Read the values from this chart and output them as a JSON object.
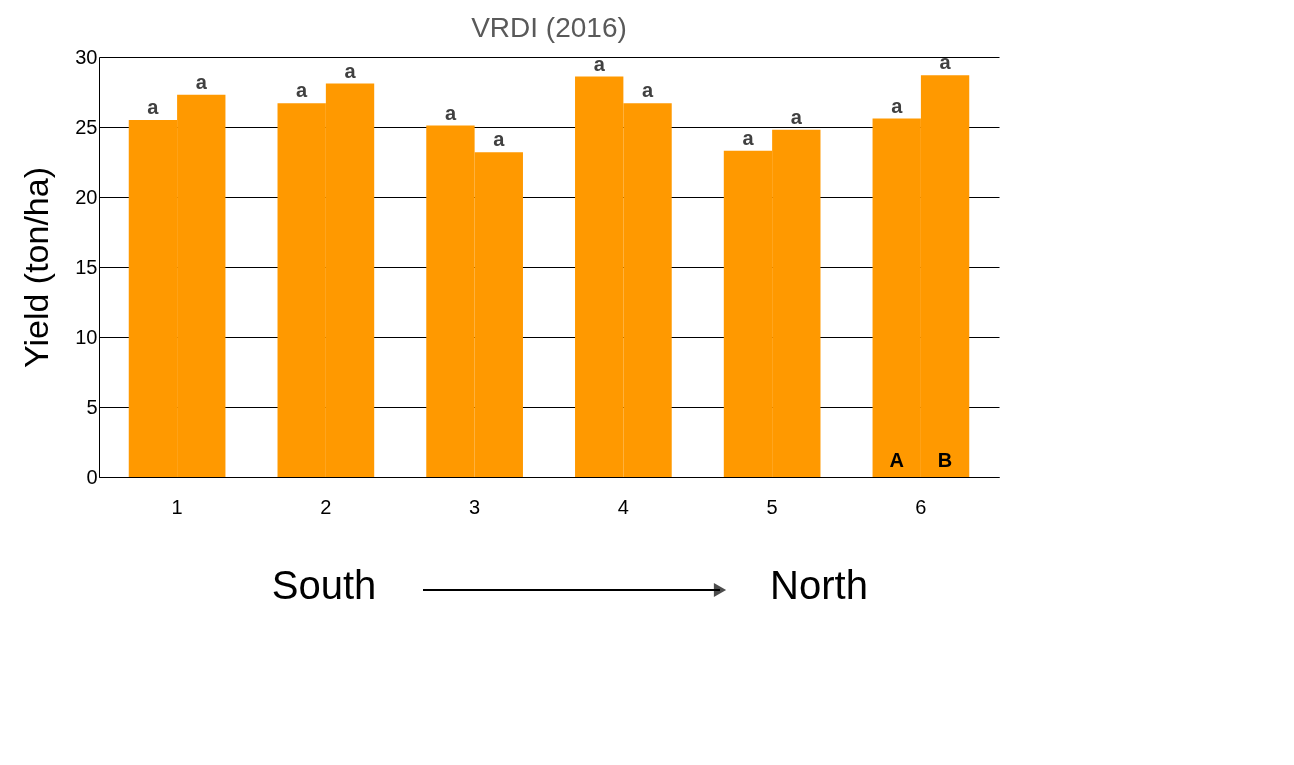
{
  "chart_data": {
    "type": "bar",
    "title": "VRDI (2016)",
    "ylabel": "Yield (ton/ha)",
    "categories": [
      "1",
      "2",
      "3",
      "4",
      "5",
      "6"
    ],
    "series": [
      {
        "name": "A",
        "color": "#ff9900",
        "values": [
          25.5,
          26.7,
          25.1,
          28.6,
          23.3,
          25.6
        ],
        "value_labels": [
          "a",
          "a",
          "a",
          "a",
          "a",
          "a"
        ]
      },
      {
        "name": "B",
        "color": "#ff9900",
        "values": [
          27.3,
          28.1,
          23.2,
          26.7,
          24.8,
          28.7
        ],
        "value_labels": [
          "a",
          "a",
          "a",
          "a",
          "a",
          "a"
        ]
      }
    ],
    "ylim": [
      0,
      30
    ],
    "yticks": [
      0,
      5,
      10,
      15,
      20,
      25,
      30
    ],
    "grid": "y",
    "annotations": [
      "South",
      "North"
    ]
  }
}
